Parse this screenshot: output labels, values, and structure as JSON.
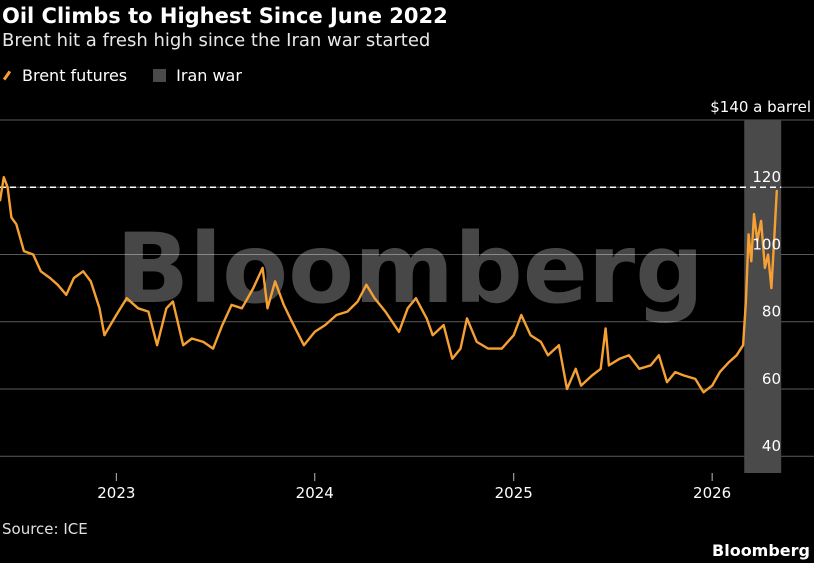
{
  "header": {
    "title": "Oil Climbs to Highest Since June 2022",
    "subtitle": "Brent hit a fresh high since the Iran war started"
  },
  "legend": {
    "series_label": "Brent futures",
    "shade_label": "Iran war"
  },
  "footer": {
    "source": "Source: ICE",
    "brand": "Bloomberg"
  },
  "watermark": "Bloomberg",
  "colors": {
    "line": "#f6a033",
    "shade": "#4a4a4a",
    "grid": "#5a5a5a",
    "background": "#000000"
  },
  "chart_data": {
    "type": "line",
    "series": [
      {
        "name": "Brent futures",
        "points": [
          [
            "2022-06-01",
            116
          ],
          [
            "2022-06-08",
            123
          ],
          [
            "2022-06-15",
            120
          ],
          [
            "2022-06-22",
            111
          ],
          [
            "2022-07-01",
            109
          ],
          [
            "2022-07-15",
            101
          ],
          [
            "2022-08-01",
            100
          ],
          [
            "2022-08-15",
            95
          ],
          [
            "2022-09-01",
            93
          ],
          [
            "2022-09-15",
            91
          ],
          [
            "2022-10-01",
            88
          ],
          [
            "2022-10-15",
            93
          ],
          [
            "2022-11-01",
            95
          ],
          [
            "2022-11-15",
            92
          ],
          [
            "2022-12-01",
            84
          ],
          [
            "2022-12-10",
            76
          ],
          [
            "2023-01-01",
            82
          ],
          [
            "2023-01-20",
            87
          ],
          [
            "2023-02-10",
            84
          ],
          [
            "2023-03-01",
            83
          ],
          [
            "2023-03-17",
            73
          ],
          [
            "2023-04-03",
            84
          ],
          [
            "2023-04-15",
            86
          ],
          [
            "2023-05-04",
            73
          ],
          [
            "2023-05-20",
            75
          ],
          [
            "2023-06-10",
            74
          ],
          [
            "2023-06-28",
            72
          ],
          [
            "2023-07-15",
            79
          ],
          [
            "2023-08-01",
            85
          ],
          [
            "2023-08-20",
            84
          ],
          [
            "2023-09-10",
            90
          ],
          [
            "2023-09-27",
            96
          ],
          [
            "2023-10-06",
            84
          ],
          [
            "2023-10-20",
            92
          ],
          [
            "2023-11-05",
            85
          ],
          [
            "2023-11-20",
            80
          ],
          [
            "2023-12-12",
            73
          ],
          [
            "2024-01-01",
            77
          ],
          [
            "2024-01-20",
            79
          ],
          [
            "2024-02-10",
            82
          ],
          [
            "2024-03-01",
            83
          ],
          [
            "2024-03-20",
            86
          ],
          [
            "2024-04-05",
            91
          ],
          [
            "2024-04-20",
            87
          ],
          [
            "2024-05-10",
            83
          ],
          [
            "2024-06-04",
            77
          ],
          [
            "2024-06-20",
            84
          ],
          [
            "2024-07-05",
            87
          ],
          [
            "2024-07-25",
            81
          ],
          [
            "2024-08-05",
            76
          ],
          [
            "2024-08-25",
            79
          ],
          [
            "2024-09-10",
            69
          ],
          [
            "2024-09-25",
            72
          ],
          [
            "2024-10-07",
            81
          ],
          [
            "2024-10-25",
            74
          ],
          [
            "2024-11-15",
            72
          ],
          [
            "2024-12-10",
            72
          ],
          [
            "2025-01-01",
            76
          ],
          [
            "2025-01-15",
            82
          ],
          [
            "2025-02-01",
            76
          ],
          [
            "2025-02-20",
            74
          ],
          [
            "2025-03-05",
            70
          ],
          [
            "2025-03-25",
            73
          ],
          [
            "2025-04-09",
            60
          ],
          [
            "2025-04-25",
            66
          ],
          [
            "2025-05-05",
            61
          ],
          [
            "2025-05-25",
            64
          ],
          [
            "2025-06-10",
            66
          ],
          [
            "2025-06-19",
            78
          ],
          [
            "2025-06-25",
            67
          ],
          [
            "2025-07-15",
            69
          ],
          [
            "2025-08-01",
            70
          ],
          [
            "2025-08-20",
            66
          ],
          [
            "2025-09-10",
            67
          ],
          [
            "2025-09-25",
            70
          ],
          [
            "2025-10-10",
            62
          ],
          [
            "2025-10-25",
            65
          ],
          [
            "2025-11-10",
            64
          ],
          [
            "2025-12-01",
            63
          ],
          [
            "2025-12-16",
            59
          ],
          [
            "2026-01-01",
            61
          ],
          [
            "2026-01-15",
            65
          ],
          [
            "2026-02-01",
            68
          ],
          [
            "2026-02-15",
            70
          ],
          [
            "2026-02-27",
            73
          ],
          [
            "2026-03-04",
            86
          ],
          [
            "2026-03-09",
            106
          ],
          [
            "2026-03-14",
            98
          ],
          [
            "2026-03-19",
            112
          ],
          [
            "2026-03-25",
            104
          ],
          [
            "2026-04-01",
            110
          ],
          [
            "2026-04-08",
            96
          ],
          [
            "2026-04-14",
            100
          ],
          [
            "2026-04-20",
            90
          ],
          [
            "2026-04-25",
            104
          ],
          [
            "2026-04-30",
            119
          ]
        ]
      }
    ],
    "x_ticks": [
      "2023",
      "2024",
      "2025",
      "2026"
    ],
    "x_tick_dates": [
      "2023-01-01",
      "2024-01-01",
      "2025-01-01",
      "2026-01-01"
    ],
    "xlim": [
      "2022-06-01",
      "2026-05-15"
    ],
    "ylim": [
      35,
      140
    ],
    "y_ticks": [
      40,
      60,
      80,
      100,
      120
    ],
    "y_top_label": "$140 a barrel",
    "y_top_value": 140,
    "reference_line": {
      "value": 120,
      "style": "dashed"
    },
    "shaded_period": {
      "label": "Iran war",
      "start": "2026-03-01",
      "end": "2026-05-08"
    },
    "grid": true,
    "ylabel": "",
    "xlabel": ""
  }
}
